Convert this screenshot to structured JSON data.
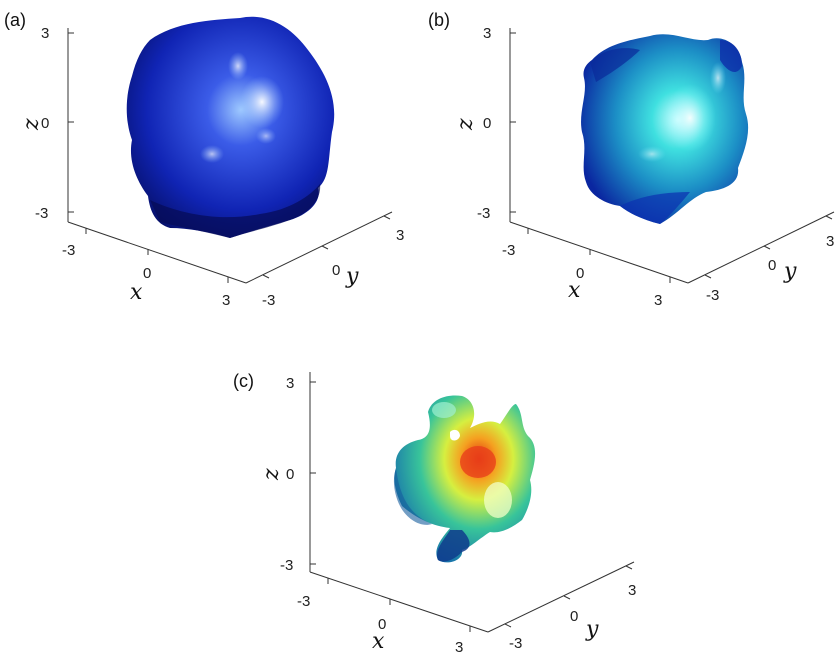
{
  "panels": [
    {
      "label": "(a)",
      "z_ticks": [
        "3",
        "0",
        "-3"
      ],
      "x_ticks": [
        "-3",
        "0",
        "3"
      ],
      "y_ticks": [
        "-3",
        "0",
        "3"
      ],
      "x_label": "x",
      "y_label": "y",
      "z_label": "z",
      "colors": {
        "base": "#0a1a9c",
        "mid": "#1f3fd6",
        "highlight": "#9ec9ff"
      }
    },
    {
      "label": "(b)",
      "z_ticks": [
        "3",
        "0",
        "-3"
      ],
      "x_ticks": [
        "-3",
        "0",
        "3"
      ],
      "y_ticks": [
        "-3",
        "0",
        "3"
      ],
      "x_label": "x",
      "y_label": "y",
      "z_label": "z",
      "colors": {
        "base": "#1234b8",
        "mid": "#22a0c8",
        "highlight": "#b8fbff"
      }
    },
    {
      "label": "(c)",
      "z_ticks": [
        "3",
        "0",
        "-3"
      ],
      "x_ticks": [
        "-3",
        "0",
        "3"
      ],
      "y_ticks": [
        "-3",
        "0",
        "3"
      ],
      "x_label": "x",
      "y_label": "y",
      "z_label": "z",
      "colors": {
        "base": "#1b7fb5",
        "mid": "#2cb39a",
        "highlight": "#d6ff5a",
        "hot": "#e8401a"
      }
    }
  ]
}
